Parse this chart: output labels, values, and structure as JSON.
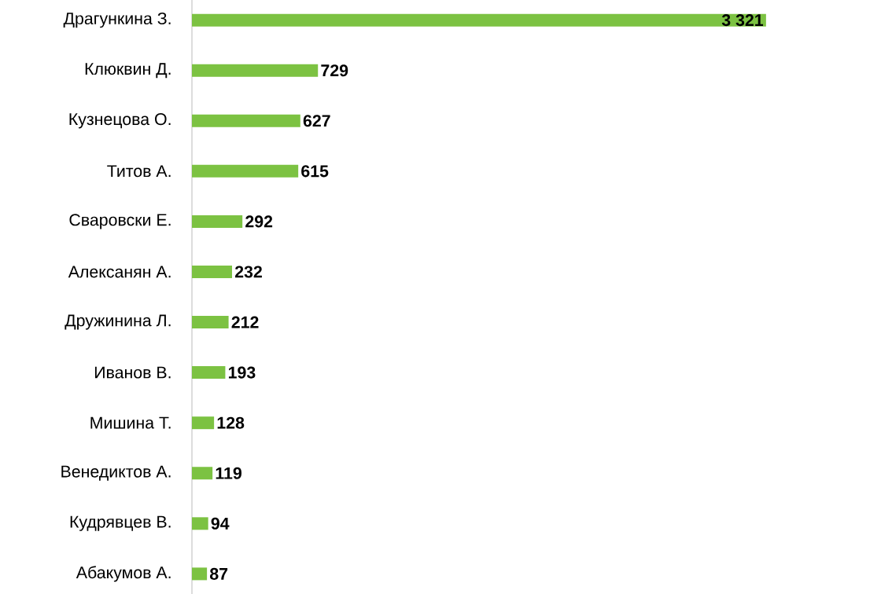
{
  "chart_data": {
    "type": "bar",
    "orientation": "horizontal",
    "categories": [
      "Драгункина З.",
      "Клюквин Д.",
      "Кузнецова О.",
      "Титов А.",
      "Сваровски Е.",
      "Алексанян А.",
      "Дружинина Л.",
      "Иванов В.",
      "Мишина Т.",
      "Венедиктов А.",
      "Кудрявцев В.",
      "Абакумов А."
    ],
    "values": [
      3321,
      729,
      627,
      615,
      292,
      232,
      212,
      193,
      128,
      119,
      94,
      87
    ],
    "value_labels": [
      "3 321",
      "729",
      "627",
      "615",
      "292",
      "232",
      "212",
      "193",
      "128",
      "119",
      "94",
      "87"
    ],
    "color": "#7cc242",
    "tick_labels": "y"
  }
}
